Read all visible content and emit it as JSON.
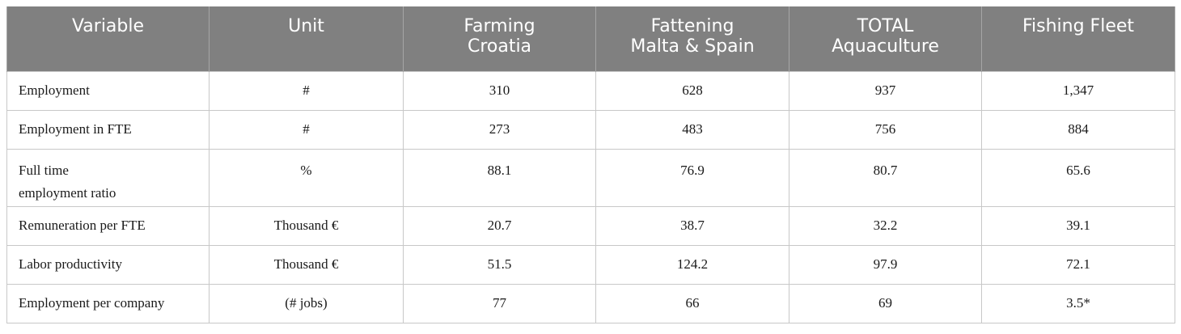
{
  "table": {
    "headers": [
      {
        "lines": [
          "Variable"
        ]
      },
      {
        "lines": [
          "Unit"
        ]
      },
      {
        "lines": [
          "Farming",
          "Croatia"
        ]
      },
      {
        "lines": [
          "Fattening",
          "Malta & Spain"
        ]
      },
      {
        "lines": [
          "TOTAL",
          "Aquaculture"
        ]
      },
      {
        "lines": [
          "Fishing Fleet"
        ]
      }
    ],
    "rows": [
      {
        "variable_lines": [
          "Employment"
        ],
        "unit": "#",
        "farming_croatia": "310",
        "fattening_malta_spain": "628",
        "total_aquaculture": "937",
        "fishing_fleet": "1,347"
      },
      {
        "variable_lines": [
          "Employment in FTE"
        ],
        "unit": "#",
        "farming_croatia": "273",
        "fattening_malta_spain": "483",
        "total_aquaculture": "756",
        "fishing_fleet": "884"
      },
      {
        "variable_lines": [
          "Full time",
          "employment ratio"
        ],
        "unit": "%",
        "farming_croatia": "88.1",
        "fattening_malta_spain": "76.9",
        "total_aquaculture": "80.7",
        "fishing_fleet": "65.6"
      },
      {
        "variable_lines": [
          "Remuneration per FTE"
        ],
        "unit": "Thousand €",
        "farming_croatia": "20.7",
        "fattening_malta_spain": "38.7",
        "total_aquaculture": "32.2",
        "fishing_fleet": "39.1"
      },
      {
        "variable_lines": [
          "Labor productivity"
        ],
        "unit": "Thousand €",
        "farming_croatia": "51.5",
        "fattening_malta_spain": "124.2",
        "total_aquaculture": "97.9",
        "fishing_fleet": "72.1"
      },
      {
        "variable_lines": [
          "Employment per company"
        ],
        "unit": "(# jobs)",
        "farming_croatia": "77",
        "fattening_malta_spain": "66",
        "total_aquaculture": "69",
        "fishing_fleet": "3.5*"
      }
    ]
  }
}
